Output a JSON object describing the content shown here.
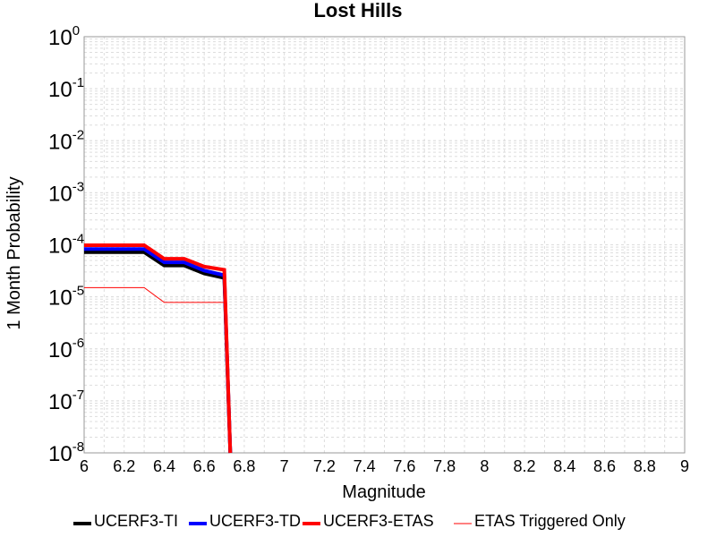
{
  "chart_data": {
    "type": "line",
    "title": "Lost Hills",
    "xlabel": "Magnitude",
    "ylabel": "1 Month Probability",
    "xlim": [
      6,
      9
    ],
    "ylim": [
      1e-08,
      1
    ],
    "yscale": "log",
    "grid": true,
    "legend_position": "bottom",
    "x_ticks": [
      "6",
      "6.2",
      "6.4",
      "6.6",
      "6.8",
      "7",
      "7.2",
      "7.4",
      "7.6",
      "7.8",
      "8",
      "8.2",
      "8.4",
      "8.6",
      "8.8",
      "9"
    ],
    "y_ticks": [
      {
        "value": 1e-08,
        "base": "10",
        "exp": "-8"
      },
      {
        "value": 1e-07,
        "base": "10",
        "exp": "-7"
      },
      {
        "value": 1e-06,
        "base": "10",
        "exp": "-6"
      },
      {
        "value": 1e-05,
        "base": "10",
        "exp": "-5"
      },
      {
        "value": 0.0001,
        "base": "10",
        "exp": "-4"
      },
      {
        "value": 0.001,
        "base": "10",
        "exp": "-3"
      },
      {
        "value": 0.01,
        "base": "10",
        "exp": "-2"
      },
      {
        "value": 0.1,
        "base": "10",
        "exp": "-1"
      },
      {
        "value": 1,
        "base": "10",
        "exp": "0"
      }
    ],
    "series": [
      {
        "name": "UCERF3-TI",
        "color": "#000000",
        "width": 4,
        "x": [
          6.0,
          6.3,
          6.4,
          6.5,
          6.6,
          6.7,
          6.73
        ],
        "y": [
          7.2e-05,
          7.2e-05,
          4e-05,
          4e-05,
          2.8e-05,
          2.3e-05,
          1e-09
        ]
      },
      {
        "name": "UCERF3-TD",
        "color": "#0000ff",
        "width": 4,
        "x": [
          6.0,
          6.3,
          6.4,
          6.5,
          6.6,
          6.7,
          6.73
        ],
        "y": [
          8.3e-05,
          8.3e-05,
          4.6e-05,
          4.6e-05,
          3.2e-05,
          2.6e-05,
          1e-09
        ]
      },
      {
        "name": "UCERF3-ETAS",
        "color": "#ff0000",
        "width": 4,
        "x": [
          6.0,
          6.3,
          6.4,
          6.5,
          6.6,
          6.7,
          6.73
        ],
        "y": [
          9.8e-05,
          9.8e-05,
          5.4e-05,
          5.4e-05,
          3.8e-05,
          3.3e-05,
          1e-09
        ]
      },
      {
        "name": "ETAS Triggered Only",
        "color": "#ff0000",
        "width": 1,
        "x": [
          6.0,
          6.3,
          6.4,
          6.5,
          6.6,
          6.7,
          6.73
        ],
        "y": [
          1.5e-05,
          1.5e-05,
          7.8e-06,
          7.8e-06,
          7.8e-06,
          7.8e-06,
          1e-09
        ]
      }
    ]
  }
}
